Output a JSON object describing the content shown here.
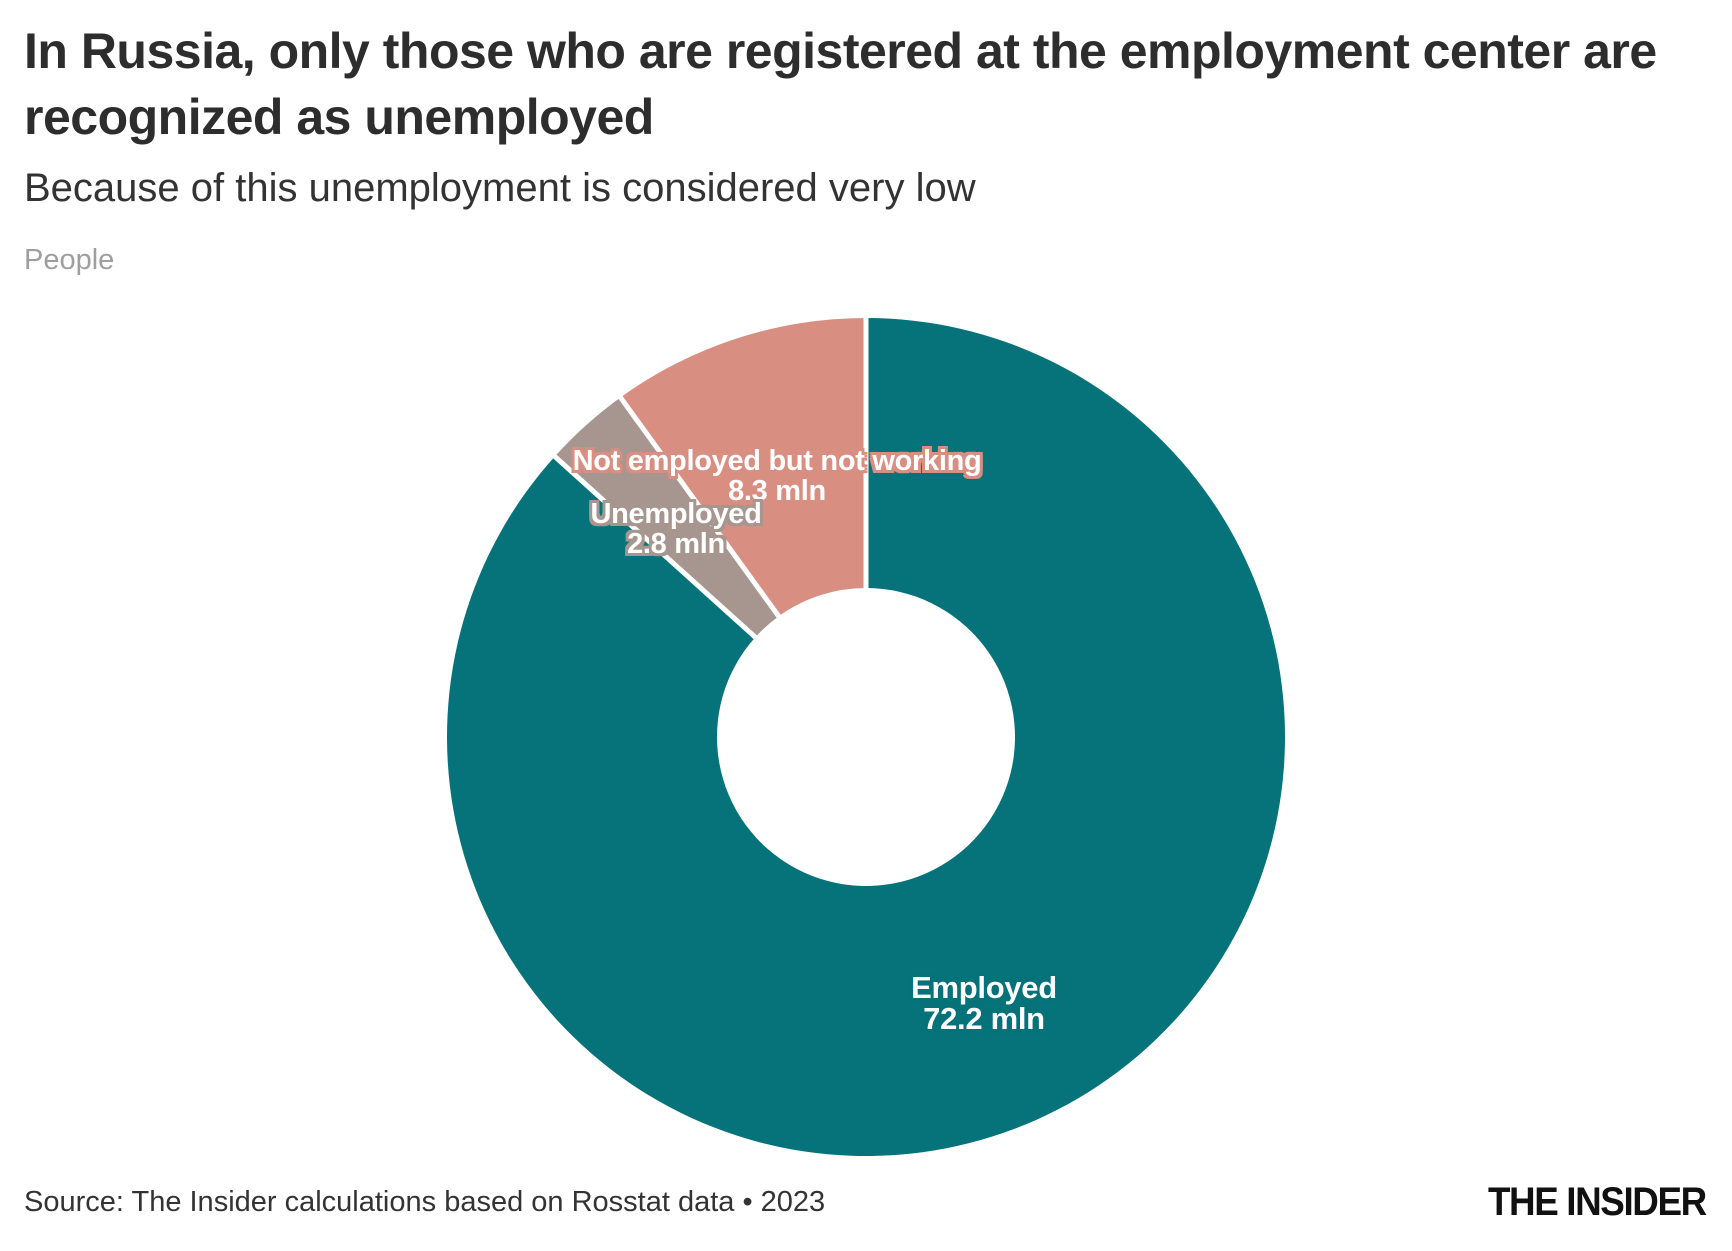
{
  "header": {
    "title": "In Russia, only those who are registered at the employment center are recognized as unemployed",
    "subtitle": "Because of this unemployment is considered very low",
    "unit_label": "People"
  },
  "footer": {
    "source": "Source: The Insider calculations based on Rosstat data • 2023",
    "logo": "THE INSIDER"
  },
  "colors": {
    "employed": "#06737a",
    "unemployed": "#a7968f",
    "not_employed": "#d98e82",
    "label_text": "#ffffff",
    "title_text": "#2d2d2d",
    "muted_text": "#9e9e9e",
    "separator": "#ffffff",
    "background": "#ffffff"
  },
  "chart_data": {
    "type": "pie",
    "subtype": "donut",
    "title": "In Russia, only those who are registered at the employment center are recognized as unemployed",
    "subtitle": "Because of this unemployment is considered very low",
    "unit": "People",
    "total": 83.3,
    "start_angle_deg": 0,
    "direction": "clockwise",
    "slices": [
      {
        "label": "Employed",
        "value": 72.2,
        "value_label": "72.2 mln",
        "color": "#06737a"
      },
      {
        "label": "Unemployed",
        "value": 2.8,
        "value_label": "2.8 mln",
        "color": "#a7968f"
      },
      {
        "label": "Not employed but not working",
        "value": 8.3,
        "value_label": "8.3 mln",
        "color": "#d98e82"
      }
    ],
    "source": "Source: The Insider calculations based on Rosstat data • 2023",
    "legend_position": "labels-on-chart"
  }
}
